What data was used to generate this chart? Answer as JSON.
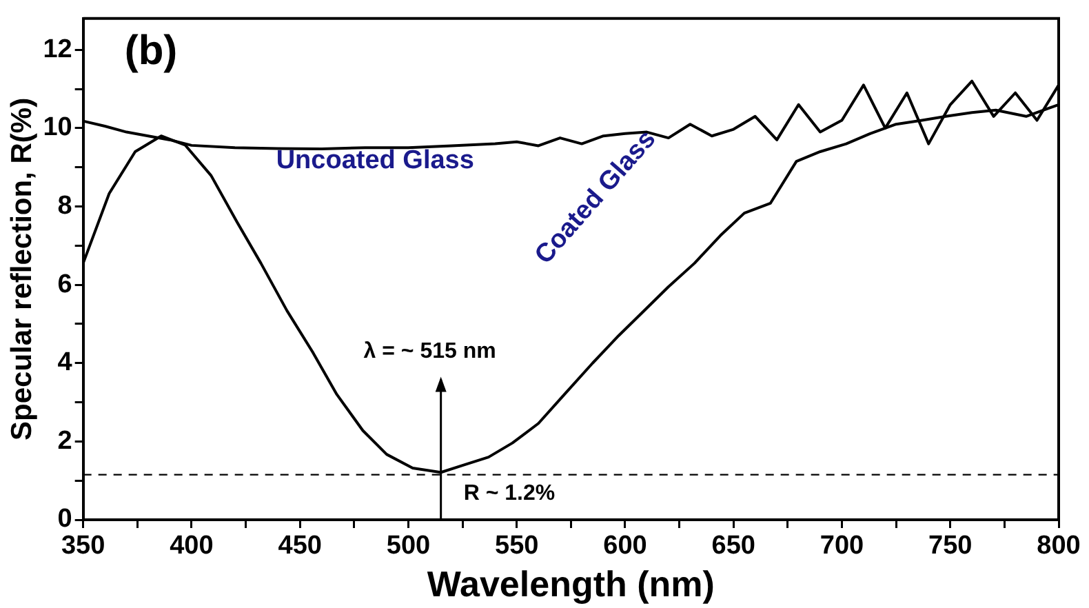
{
  "chart_data": {
    "type": "line",
    "xlabel": "Wavelength (nm)",
    "ylabel": "Specular reflection, R(%)",
    "xlim": [
      350,
      800
    ],
    "xticks": [
      350,
      {
        "value": 375,
        "label": null
      },
      400,
      {
        "value": 425,
        "label": null
      },
      450,
      {
        "value": 475,
        "label": null
      },
      500,
      {
        "value": 525,
        "label": null
      },
      550,
      {
        "value": 575,
        "label": null
      },
      600,
      {
        "value": 625,
        "label": null
      },
      650,
      {
        "value": 675,
        "label": null
      },
      700,
      {
        "value": 725,
        "label": null
      },
      750,
      {
        "value": 775,
        "label": null
      },
      800
    ],
    "ylim": [
      0,
      12.8
    ],
    "yticks": [
      0,
      {
        "value": 1,
        "label": null
      },
      2,
      {
        "value": 3,
        "label": null
      },
      4,
      {
        "value": 5,
        "label": null
      },
      6,
      {
        "value": 7,
        "label": null
      },
      8,
      {
        "value": 9,
        "label": null
      },
      10,
      {
        "value": 11,
        "label": null
      },
      12
    ],
    "grid": false,
    "legend": false,
    "marker": "none",
    "line_style": "solid",
    "series": [
      {
        "name": "Uncoated Glass",
        "color": "#000000",
        "x": [
          350,
          360,
          370,
          380,
          390,
          400,
          420,
          440,
          460,
          480,
          500,
          520,
          540,
          550,
          560,
          570,
          580,
          590,
          600,
          610,
          620,
          630,
          640,
          650,
          660,
          670,
          680,
          690,
          700,
          710,
          720,
          730,
          740,
          750,
          760,
          770,
          780,
          790,
          800
        ],
        "values": [
          10.18,
          10.05,
          9.9,
          9.8,
          9.7,
          9.56,
          9.5,
          9.48,
          9.47,
          9.5,
          9.5,
          9.55,
          9.6,
          9.65,
          9.55,
          9.75,
          9.6,
          9.8,
          9.86,
          9.9,
          9.75,
          10.1,
          9.8,
          9.97,
          10.3,
          9.7,
          10.6,
          9.9,
          10.2,
          11.1,
          10.0,
          10.9,
          9.6,
          10.6,
          11.2,
          10.3,
          10.9,
          10.2,
          11.1
        ]
      },
      {
        "name": "Coated Glass",
        "color": "#000000",
        "x": [
          350,
          362,
          374,
          386,
          397,
          409,
          421,
          432,
          444,
          456,
          467,
          479,
          490,
          502,
          515,
          525,
          537,
          548,
          560,
          572,
          585,
          597,
          609,
          620,
          632,
          644,
          655,
          667,
          679,
          690,
          702,
          713,
          725,
          737,
          748,
          760,
          771,
          785,
          800
        ],
        "values": [
          6.55,
          8.33,
          9.4,
          9.8,
          9.57,
          8.79,
          7.6,
          6.55,
          5.34,
          4.27,
          3.2,
          2.28,
          1.67,
          1.32,
          1.21,
          1.39,
          1.6,
          1.96,
          2.46,
          3.2,
          4.0,
          4.7,
          5.35,
          5.95,
          6.55,
          7.26,
          7.83,
          8.08,
          9.15,
          9.4,
          9.6,
          9.86,
          10.1,
          10.2,
          10.3,
          10.4,
          10.46,
          10.3,
          10.6
        ]
      }
    ],
    "ref_lines": [
      {
        "axis": "y",
        "value": 1.15,
        "label": "R ~ 1.2%",
        "line_style": "dashed",
        "color": "#000000"
      }
    ],
    "annotations": [
      "(b)",
      "λ = ~ 515 nm"
    ]
  }
}
